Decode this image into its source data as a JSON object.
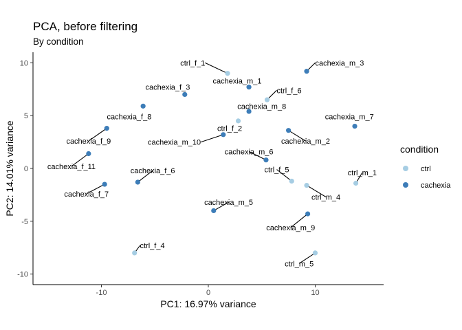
{
  "chart_data": {
    "type": "scatter",
    "title": "PCA, before filtering",
    "subtitle": "By condition",
    "xlabel": "PC1: 16.97% variance",
    "ylabel": "PC2: 14.01% variance",
    "xlim": [
      -16.4,
      16.4
    ],
    "ylim": [
      -11.0,
      11.0
    ],
    "x_ticks": [
      -10,
      0,
      10
    ],
    "x_tick_labels": [
      "-10",
      "0",
      "10"
    ],
    "y_ticks": [
      -10,
      -5,
      0,
      5,
      10
    ],
    "y_tick_labels": [
      "-10",
      "-5",
      "0",
      "5",
      "10"
    ],
    "grid": false,
    "legend": {
      "title": "condition",
      "position": "right",
      "entries": [
        {
          "label": "ctrl",
          "color": "#a6cde3"
        },
        {
          "label": "cachexia",
          "color": "#3d7db8"
        }
      ]
    },
    "colors": {
      "ctrl": "#a6cde3",
      "cachexia": "#3d7db8"
    },
    "points": [
      {
        "label": "ctrl_f_1",
        "group": "ctrl",
        "x": 1.8,
        "y": 9.0,
        "lx": -0.3,
        "ly": 10.0,
        "anchor": "end",
        "line": true
      },
      {
        "label": "cachexia_m_3",
        "group": "cachexia",
        "x": 9.2,
        "y": 9.2,
        "lx": 10.0,
        "ly": 10.0,
        "anchor": "start",
        "line": true
      },
      {
        "label": "cachexia_m_1",
        "group": "cachexia",
        "x": 3.8,
        "y": 7.7,
        "lx": 2.7,
        "ly": 8.3,
        "anchor": "middle",
        "line": false
      },
      {
        "label": "ctrl_f_6",
        "group": "ctrl",
        "x": 5.5,
        "y": 6.5,
        "lx": 6.4,
        "ly": 7.4,
        "anchor": "start",
        "line": true
      },
      {
        "label": "cachexia_f_3",
        "group": "cachexia",
        "x": -2.2,
        "y": 7.0,
        "lx": -3.8,
        "ly": 7.7,
        "anchor": "middle",
        "line": false
      },
      {
        "label": "cachexia_m_8",
        "group": "cachexia",
        "x": 3.8,
        "y": 5.4,
        "lx": 5.0,
        "ly": 5.9,
        "anchor": "middle",
        "line": false
      },
      {
        "label": "cachexia_f_8",
        "group": "cachexia",
        "x": -6.1,
        "y": 5.9,
        "lx": -7.4,
        "ly": 4.9,
        "anchor": "middle",
        "line": false
      },
      {
        "label": "ctrl_f_2",
        "group": "ctrl",
        "x": 2.8,
        "y": 4.5,
        "lx": 2.0,
        "ly": 3.8,
        "anchor": "middle",
        "line": false
      },
      {
        "label": "cachexia_m_7",
        "group": "cachexia",
        "x": 13.7,
        "y": 4.0,
        "lx": 13.2,
        "ly": 4.9,
        "anchor": "middle",
        "line": false
      },
      {
        "label": "cachexia_f_9",
        "group": "cachexia",
        "x": -9.5,
        "y": 3.8,
        "lx": -11.2,
        "ly": 2.6,
        "anchor": "middle",
        "line": true
      },
      {
        "label": "cachexia_m_10",
        "group": "cachexia",
        "x": 1.4,
        "y": 3.2,
        "lx": -0.7,
        "ly": 2.5,
        "anchor": "end",
        "line": true
      },
      {
        "label": "cachexia_m_2",
        "group": "cachexia",
        "x": 7.5,
        "y": 3.6,
        "lx": 9.1,
        "ly": 2.6,
        "anchor": "middle",
        "line": true
      },
      {
        "label": "cachexia_f_11",
        "group": "cachexia",
        "x": -11.2,
        "y": 1.4,
        "lx": -12.8,
        "ly": 0.2,
        "anchor": "middle",
        "line": true
      },
      {
        "label": "cachexia_m_6",
        "group": "cachexia",
        "x": 5.4,
        "y": 0.8,
        "lx": 3.8,
        "ly": 1.6,
        "anchor": "middle",
        "line": true
      },
      {
        "label": "cachexia_f_6",
        "group": "cachexia",
        "x": -6.6,
        "y": -1.3,
        "lx": -5.2,
        "ly": -0.2,
        "anchor": "middle",
        "line": true
      },
      {
        "label": "ctrl_f_5",
        "group": "ctrl",
        "x": 7.8,
        "y": -1.2,
        "lx": 6.4,
        "ly": -0.1,
        "anchor": "middle",
        "line": true
      },
      {
        "label": "ctrl_m_1",
        "group": "ctrl",
        "x": 13.8,
        "y": -1.4,
        "lx": 14.4,
        "ly": -0.4,
        "anchor": "middle",
        "line": true
      },
      {
        "label": "cachexia_f_7",
        "group": "cachexia",
        "x": -9.7,
        "y": -1.5,
        "lx": -11.4,
        "ly": -2.4,
        "anchor": "middle",
        "line": true
      },
      {
        "label": "ctrl_m_4",
        "group": "ctrl",
        "x": 9.2,
        "y": -1.6,
        "lx": 11.0,
        "ly": -2.7,
        "anchor": "middle",
        "line": true
      },
      {
        "label": "cachexia_m_5",
        "group": "cachexia",
        "x": 0.5,
        "y": -4.0,
        "lx": 1.9,
        "ly": -3.2,
        "anchor": "middle",
        "line": true
      },
      {
        "label": "cachexia_m_9",
        "group": "cachexia",
        "x": 9.3,
        "y": -4.3,
        "lx": 7.7,
        "ly": -5.6,
        "anchor": "middle",
        "line": true
      },
      {
        "label": "ctrl_f_4",
        "group": "ctrl",
        "x": -6.9,
        "y": -8.0,
        "lx": -6.4,
        "ly": -7.3,
        "anchor": "start",
        "line": true
      },
      {
        "label": "ctrl_m_5",
        "group": "ctrl",
        "x": 10.0,
        "y": -8.0,
        "lx": 8.5,
        "ly": -9.0,
        "anchor": "middle",
        "line": true
      }
    ]
  }
}
